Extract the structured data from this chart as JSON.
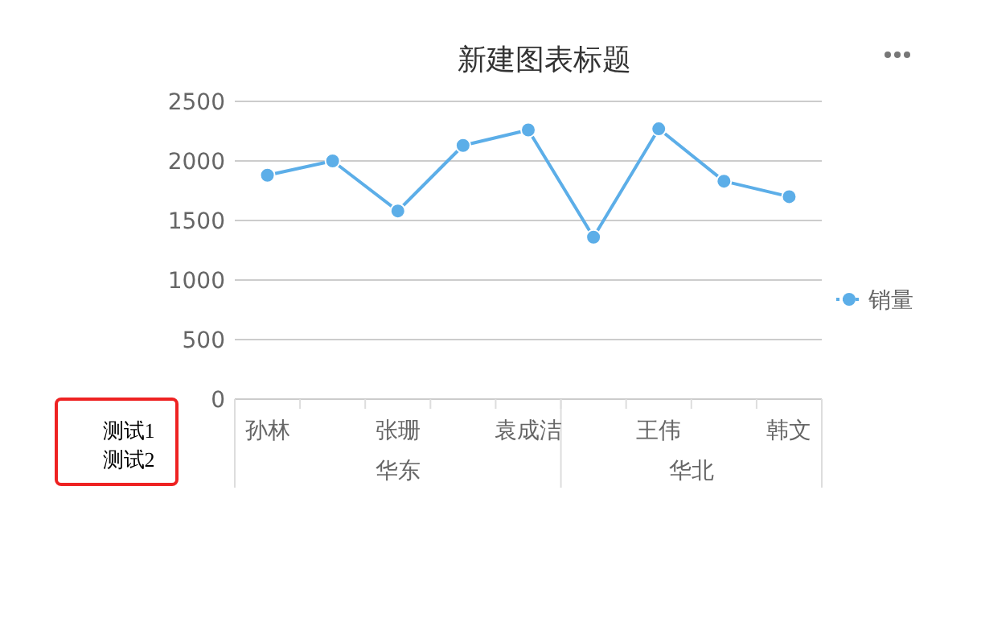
{
  "chart_data": {
    "type": "line",
    "title": "新建图表标题",
    "categories": [
      "孙林",
      null,
      "张珊",
      null,
      "袁成洁",
      null,
      "王伟",
      null,
      "韩文"
    ],
    "series": [
      {
        "name": "销量",
        "color": "#5caee8",
        "values": [
          1880,
          2000,
          1580,
          2130,
          2260,
          1360,
          2270,
          1830,
          1700
        ]
      }
    ],
    "ylim": [
      0,
      2500
    ],
    "yticks": [
      0,
      500,
      1000,
      1500,
      2000,
      2500
    ],
    "grid": "y",
    "legend": "right",
    "marker": "circle",
    "line_style": "solid",
    "annotations": [
      "华东",
      "华北",
      "测试1",
      "测试2"
    ]
  }
}
